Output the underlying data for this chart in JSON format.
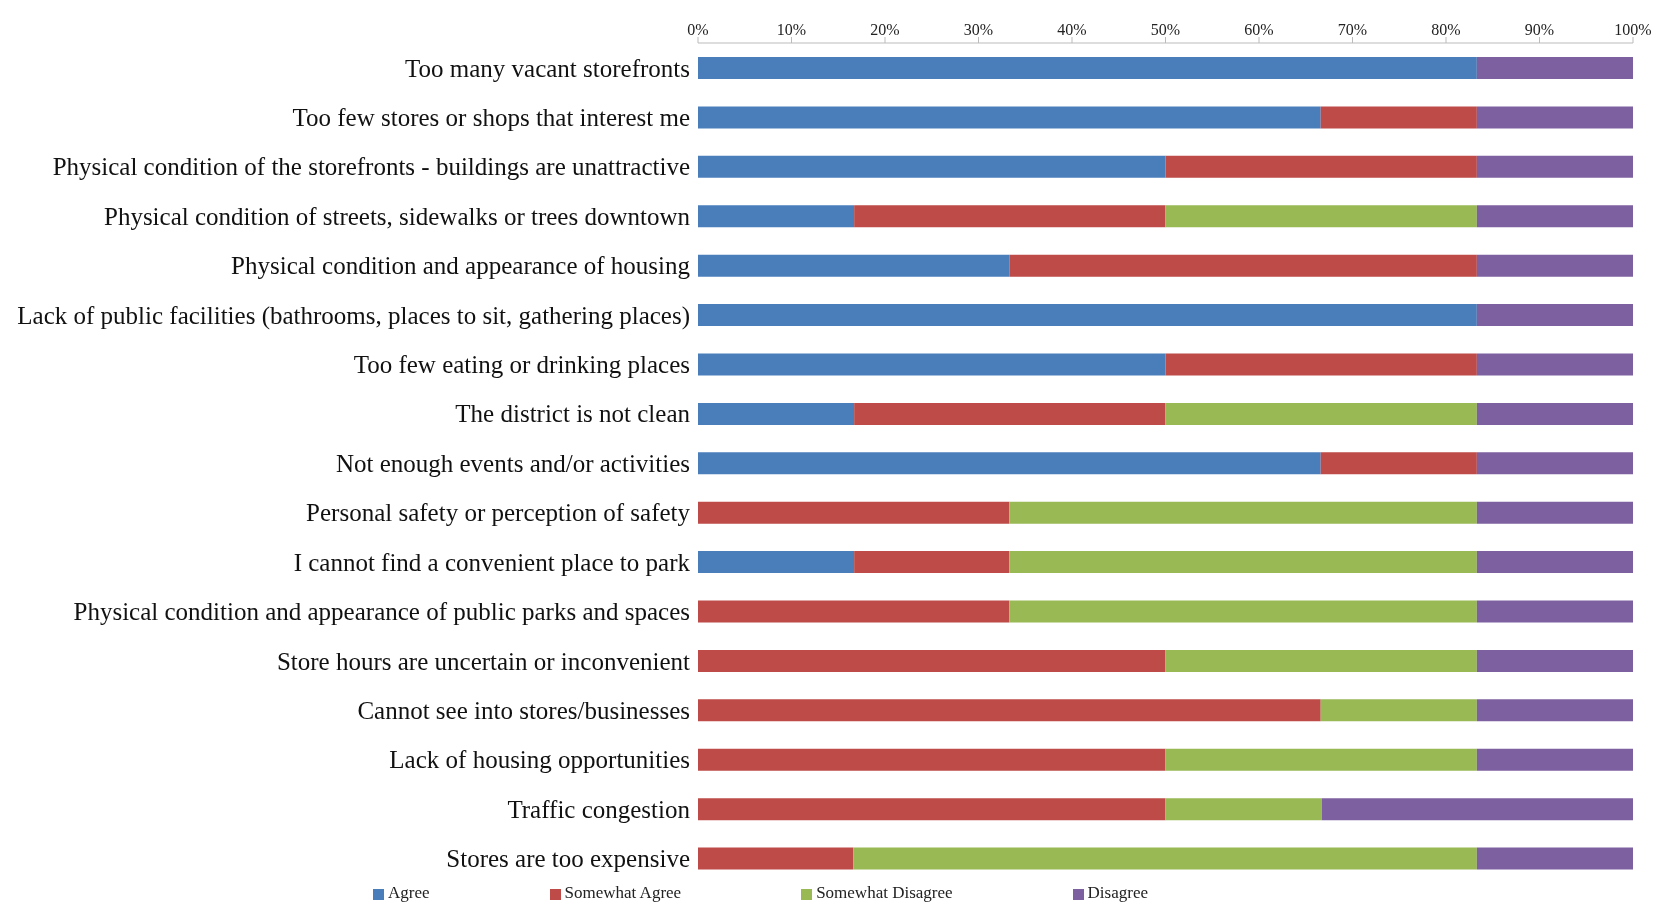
{
  "chart_data": {
    "type": "bar",
    "orientation": "horizontal",
    "stacked": true,
    "categories": [
      "Too many vacant storefronts",
      "Too few stores or shops that interest me",
      "Physical condition of the storefronts - buildings are unattractive",
      "Physical condition of streets, sidewalks or trees downtown",
      "Physical condition and appearance of housing",
      "Lack of public facilities (bathrooms, places to sit, gathering places)",
      "Too few eating or drinking places",
      "The district is not clean",
      "Not enough events and/or activities",
      "Personal safety or perception of safety",
      "I cannot find a convenient place to park",
      "Physical condition and appearance of public parks and spaces",
      "Store hours are uncertain or inconvenient",
      "Cannot see into stores/businesses",
      "Lack of housing opportunities",
      "Traffic congestion",
      "Stores are too expensive"
    ],
    "series": [
      {
        "name": "Agree",
        "color": "#4a7ebb",
        "values": [
          83.3,
          66.6,
          50,
          16.7,
          33.3,
          83.3,
          50,
          16.7,
          66.6,
          0,
          16.7,
          0,
          0,
          0,
          0,
          0,
          0
        ]
      },
      {
        "name": "Somewhat Agree",
        "color": "#be4b48",
        "values": [
          0,
          16.7,
          33.3,
          33.3,
          50,
          0,
          33.3,
          33.3,
          16.7,
          33.3,
          16.6,
          33.3,
          50,
          66.6,
          50,
          50,
          16.6
        ]
      },
      {
        "name": "Somewhat Disagree",
        "color": "#98b954",
        "values": [
          0,
          0,
          0,
          33.3,
          0,
          0,
          0,
          33.3,
          0,
          50,
          50,
          50,
          33.3,
          16.7,
          33.3,
          16.7,
          66.7
        ]
      },
      {
        "name": "Disagree",
        "color": "#7d60a0",
        "values": [
          16.7,
          16.7,
          16.7,
          16.7,
          16.7,
          16.7,
          16.7,
          16.7,
          16.7,
          16.7,
          16.7,
          16.7,
          16.7,
          16.7,
          16.7,
          33.3,
          16.7
        ]
      }
    ],
    "xlim": [
      0,
      100
    ],
    "xticks": [
      {
        "value": 0,
        "label": "0%"
      },
      {
        "value": 10,
        "label": "10%"
      },
      {
        "value": 20,
        "label": "20%"
      },
      {
        "value": 30,
        "label": "30%"
      },
      {
        "value": 40,
        "label": "40%"
      },
      {
        "value": 50,
        "label": "50%"
      },
      {
        "value": 60,
        "label": "60%"
      },
      {
        "value": 70,
        "label": "70%"
      },
      {
        "value": 80,
        "label": "80%"
      },
      {
        "value": 90,
        "label": "90%"
      },
      {
        "value": 100,
        "label": "100%"
      }
    ],
    "grid": false,
    "legend": "bottom"
  }
}
